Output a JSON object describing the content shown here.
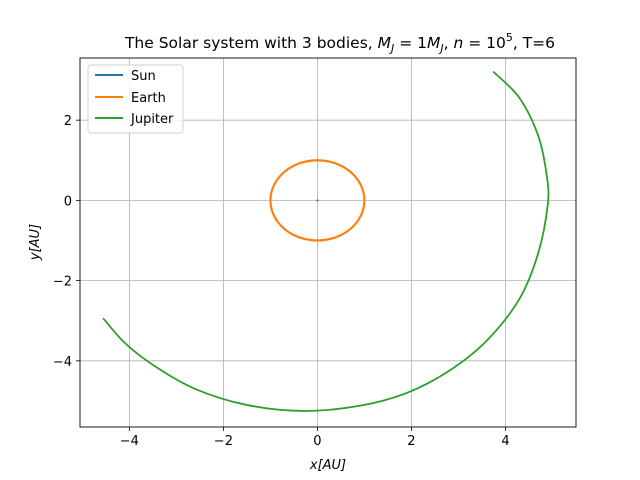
{
  "chart_data": {
    "type": "line",
    "title": "The Solar system with 3 bodies, M_J = 1M_J, n = 10^5, T=6",
    "title_parts": {
      "prefix": "The Solar system with 3 bodies, ",
      "mj_var": "M",
      "mj_sub": "J",
      "mj_eq": " = 1",
      "mj_unit": "M",
      "mj_unit_sub": "J",
      "sep": ", ",
      "n_var": "n",
      "n_eq": " = 10",
      "n_exp": "5",
      "suffix": ", T=6"
    },
    "xlabel": "x[AU]",
    "ylabel": "y[AU]",
    "xlim": [
      -5.05,
      5.5
    ],
    "ylim": [
      -5.65,
      3.55
    ],
    "xticks": [
      -4,
      -2,
      0,
      2,
      4
    ],
    "yticks": [
      -4,
      -2,
      0,
      2
    ],
    "xtick_labels": [
      "−4",
      "−2",
      "0",
      "2",
      "4"
    ],
    "ytick_labels": [
      "−4",
      "−2",
      "0",
      "2"
    ],
    "grid": true,
    "legend_position": "top-left",
    "series": [
      {
        "name": "Sun",
        "color": "#1f77b4",
        "x": [
          -0.004,
          0.004,
          0.0,
          -0.004
        ],
        "y": [
          0.0,
          0.0,
          0.004,
          0.0
        ]
      },
      {
        "name": "Earth",
        "color": "#ff7f0e",
        "x": [
          1.0,
          0.866,
          0.5,
          0.0,
          -0.5,
          -0.866,
          -1.0,
          -0.866,
          -0.5,
          0.0,
          0.5,
          0.866,
          1.0
        ],
        "y": [
          0.0,
          0.5,
          0.866,
          1.0,
          0.866,
          0.5,
          0.0,
          -0.5,
          -0.866,
          -1.0,
          -0.866,
          -0.5,
          0.0
        ],
        "closed": true
      },
      {
        "name": "Jupiter",
        "color": "#2ca02c",
        "x": [
          3.75,
          4.3,
          4.7,
          4.88,
          4.9,
          4.7,
          4.3,
          3.6,
          2.8,
          1.9,
          0.9,
          -0.3,
          -1.5,
          -2.6,
          -3.5,
          -4.1,
          -4.55
        ],
        "y": [
          3.2,
          2.55,
          1.6,
          0.6,
          -0.1,
          -1.3,
          -2.45,
          -3.5,
          -4.25,
          -4.8,
          -5.12,
          -5.25,
          -5.1,
          -4.7,
          -4.1,
          -3.55,
          -2.95
        ]
      }
    ]
  }
}
